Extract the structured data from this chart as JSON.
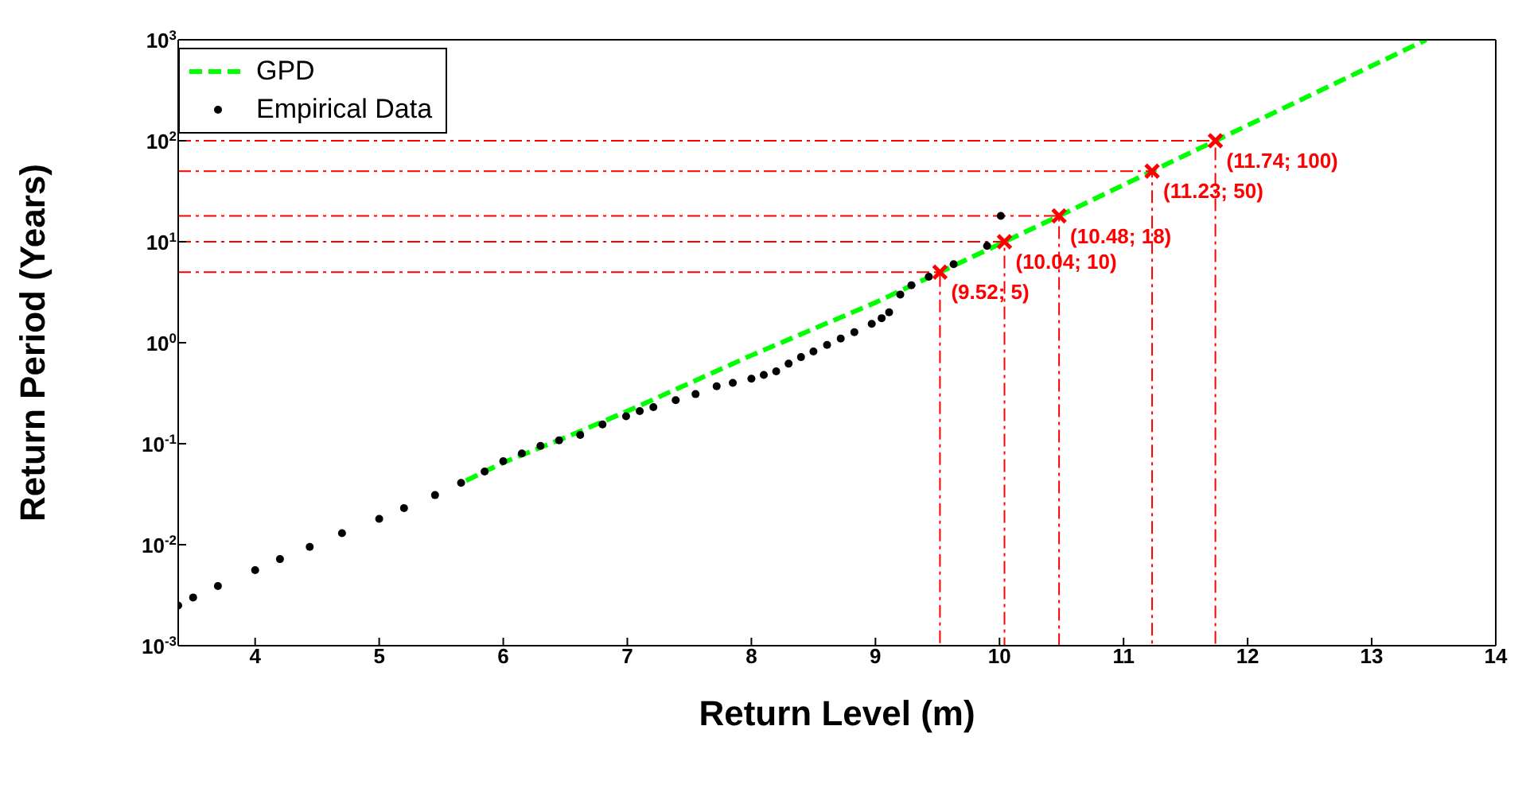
{
  "chart_data": {
    "type": "line",
    "xlabel": "Return Level (m)",
    "ylabel": "Return Period (Years)",
    "log": "y",
    "xlim": [
      3.38,
      14
    ],
    "xticks": [
      4,
      5,
      6,
      7,
      8,
      9,
      10,
      11,
      12,
      13,
      14
    ],
    "ylim": [
      0.001,
      1000
    ],
    "yticks": [
      {
        "value": 0.001,
        "label": "10$^{-3}$"
      },
      {
        "value": 0.01,
        "label": "10$^{-2}$"
      },
      {
        "value": 0.1,
        "label": "10$^{-1}$"
      },
      {
        "value": 1,
        "label": "10$^{0}$"
      },
      {
        "value": 10,
        "label": "10$^{1}$"
      },
      {
        "value": 100,
        "label": "10$^{2}$"
      },
      {
        "value": 1000,
        "label": "10$^{3}$"
      }
    ],
    "grid": false,
    "legend": "top left",
    "series": [
      {
        "name": "GPD",
        "color": "#00ff00",
        "line_style": "dashed",
        "marker": "none",
        "x": [
          5.7,
          6,
          6.5,
          7,
          8,
          9,
          9.52,
          10.04,
          10.48,
          11.23,
          11.74,
          13.44
        ],
        "values": [
          0.043,
          0.065,
          0.115,
          0.21,
          0.75,
          2.5,
          5,
          10,
          18,
          50,
          100,
          1000
        ]
      },
      {
        "name": "Empirical Data",
        "type": "scatter",
        "color": "#000000",
        "marker": "circle",
        "x": [
          3.38,
          3.5,
          3.7,
          4,
          4.2,
          4.44,
          4.7,
          5,
          5.2,
          5.45,
          5.66,
          5.85,
          6,
          6.15,
          6.3,
          6.45,
          6.62,
          6.8,
          6.99,
          7.1,
          7.21,
          7.39,
          7.55,
          7.72,
          7.85,
          8,
          8.1,
          8.2,
          8.3,
          8.4,
          8.5,
          8.61,
          8.72,
          8.83,
          8.97,
          9.05,
          9.11,
          9.2,
          9.29,
          9.43,
          9.63,
          9.9,
          10.01
        ],
        "values": [
          0.0025,
          0.003,
          0.0039,
          0.0056,
          0.0072,
          0.0095,
          0.013,
          0.018,
          0.023,
          0.031,
          0.041,
          0.053,
          0.067,
          0.08,
          0.095,
          0.108,
          0.122,
          0.155,
          0.187,
          0.21,
          0.23,
          0.27,
          0.31,
          0.37,
          0.4,
          0.44,
          0.48,
          0.52,
          0.62,
          0.72,
          0.82,
          0.95,
          1.1,
          1.27,
          1.54,
          1.75,
          2,
          3,
          3.7,
          4.5,
          6,
          9.1,
          18
        ]
      },
      {
        "type": "line",
        "color": "#ff0000",
        "line_style": "dashed",
        "marker": "none",
        "x": [
          3.38,
          9.52,
          9.52
        ],
        "values": [
          5,
          5,
          0.001
        ]
      },
      {
        "type": "line",
        "color": "#ff0000",
        "line_style": "dashed",
        "marker": "none",
        "x": [
          3.38,
          10.04,
          10.04
        ],
        "values": [
          10,
          10,
          0.001
        ]
      },
      {
        "type": "line",
        "color": "#ff0000",
        "line_style": "dashed",
        "marker": "none",
        "x": [
          3.38,
          10.48,
          10.48
        ],
        "values": [
          18,
          18,
          0.001
        ]
      },
      {
        "type": "line",
        "color": "#ff0000",
        "line_style": "dashed",
        "marker": "none",
        "x": [
          3.38,
          11.23,
          11.23
        ],
        "values": [
          50,
          50,
          0.001
        ]
      },
      {
        "type": "line",
        "color": "#ff0000",
        "line_style": "dashed",
        "marker": "none",
        "x": [
          3.38,
          11.74,
          11.74
        ],
        "values": [
          100,
          100,
          0.001
        ]
      },
      {
        "type": "scatter",
        "color": "#ff0000",
        "marker": "cross",
        "x": [
          9.52,
          10.04,
          10.48,
          11.23,
          11.74
        ],
        "values": [
          5,
          10,
          18,
          50,
          100
        ],
        "value_labels": [
          "(9.52; 5)",
          "(10.04; 10)",
          "(10.48; 18)",
          "(11.23; 50)",
          "(11.74; 100)"
        ]
      }
    ]
  }
}
